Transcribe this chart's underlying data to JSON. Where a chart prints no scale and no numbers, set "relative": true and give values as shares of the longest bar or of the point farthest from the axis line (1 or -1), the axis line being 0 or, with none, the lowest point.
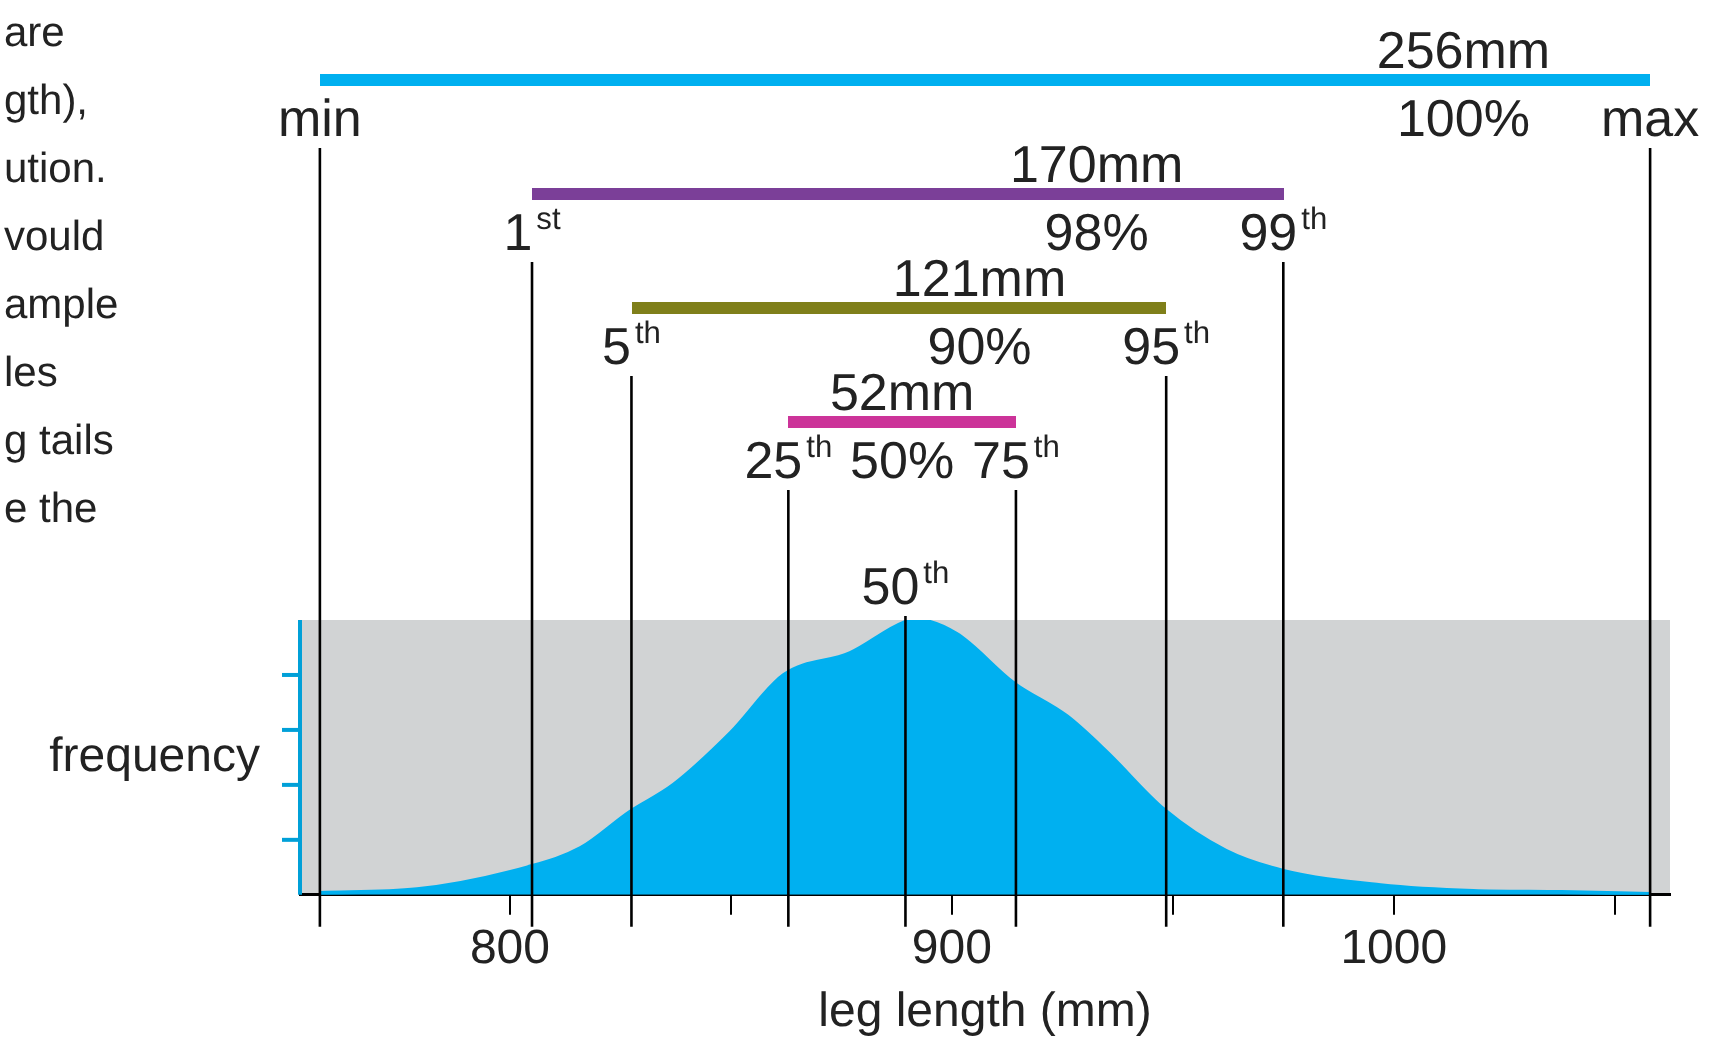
{
  "chart_data": {
    "type": "area",
    "xlabel": "leg length (mm)",
    "ylabel": "frequency",
    "relative": true,
    "legend": false,
    "grid": false,
    "xlim": [
      752.5,
      1062.5
    ],
    "xticks": [
      {
        "value": 757,
        "label": null
      },
      800,
      {
        "value": 850,
        "label": null
      },
      900,
      {
        "value": 950,
        "label": null
      },
      1000,
      {
        "value": 1050,
        "label": null
      },
      {
        "value": 1058,
        "label": null
      }
    ],
    "series": [
      {
        "color": "#00b0f0",
        "x": [
          757,
          779,
          804,
          816,
          827,
          837,
          850,
          862,
          877,
          889,
          892,
          901,
          914,
          926,
          935,
          948,
          962,
          975,
          997,
          1018,
          1038,
          1058
        ],
        "values": [
          0.007,
          0.02,
          0.1,
          0.17,
          0.3,
          0.4,
          0.59,
          0.8,
          0.88,
          0.99,
          1,
          0.95,
          0.77,
          0.65,
          0.52,
          0.31,
          0.16,
          0.087,
          0.035,
          0.014,
          0.01,
          0.003
        ]
      }
    ],
    "ref_lines": [
      {
        "axis": "x",
        "value": 757,
        "label": "min"
      },
      {
        "axis": "x",
        "value": 805,
        "label": "1$^{st}$"
      },
      {
        "axis": "x",
        "value": 827.5,
        "label": "5$^{th}$"
      },
      {
        "axis": "x",
        "value": 863,
        "label": "25$^{th}$"
      },
      {
        "axis": "x",
        "value": 889.5,
        "label": "50$^{th}$"
      },
      {
        "axis": "x",
        "value": 914.5,
        "label": "75$^{th}$"
      },
      {
        "axis": "x",
        "value": 948.5,
        "label": "95$^{th}$"
      },
      {
        "axis": "x",
        "value": 975,
        "label": "99$^{th}$"
      },
      {
        "axis": "x",
        "value": 1058,
        "label": "max"
      }
    ],
    "annotations": [
      "256mm",
      "100%",
      "170mm",
      "98%",
      "121mm",
      "90%",
      "52mm",
      "50%",
      "are",
      "gth),",
      "ution.",
      "vould",
      "ample",
      "les",
      "g tails",
      "e the"
    ]
  }
}
